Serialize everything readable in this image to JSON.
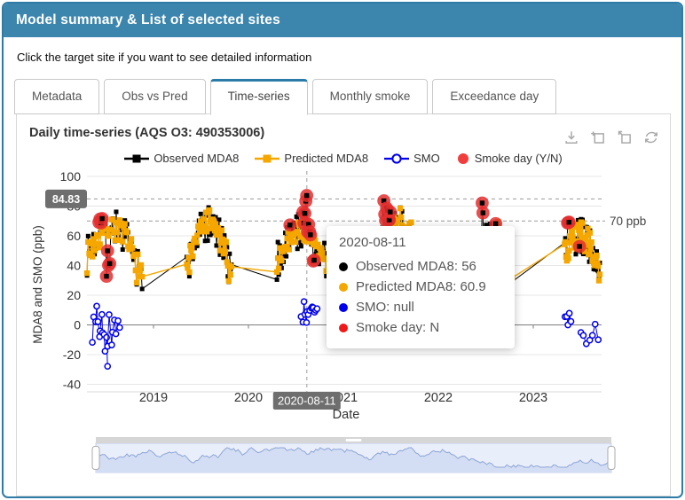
{
  "window": {
    "title": "Model summary & List of selected sites"
  },
  "instruction": "Click the target site if you want to see detailed information",
  "tabs": {
    "active_index": 2,
    "items": [
      {
        "label": "Metadata"
      },
      {
        "label": "Obs vs Pred"
      },
      {
        "label": "Time-series"
      },
      {
        "label": "Monthly smoke"
      },
      {
        "label": "Exceedance day"
      }
    ]
  },
  "panel": {
    "title": "Daily time-series (AQS O3: 490353006)",
    "toolbar": [
      "download-icon",
      "box-zoom-icon",
      "zoom-back-icon",
      "refresh-icon"
    ]
  },
  "tooltip": {
    "title": "2020-08-11",
    "rows": [
      {
        "label": "Observed MDA8: 56",
        "color": "#000000"
      },
      {
        "label": "Predicted MDA8: 60.9",
        "color": "#f5a700"
      },
      {
        "label": "SMO: null",
        "color": "#0000ee"
      },
      {
        "label": "Smoke day: N",
        "color": "#f01818"
      }
    ]
  },
  "chart_data": {
    "type": "line+scatter",
    "title": "Daily time-series (AQS O3: 490353006)",
    "xlabel": "Date",
    "ylabel": "MDA8 and SMO (ppb)",
    "ylim": [
      -40,
      100
    ],
    "yticks": [
      100,
      80,
      60,
      40,
      20,
      0,
      -20,
      -40
    ],
    "xticks": [
      2019,
      2020,
      2021,
      2022,
      2023
    ],
    "xlim": [
      2018.3,
      2023.73
    ],
    "grid": true,
    "legend_position": "top",
    "series": [
      {
        "name": "Observed MDA8",
        "color": "#000000",
        "marker": "square"
      },
      {
        "name": "Predicted MDA8",
        "color": "#f5a700",
        "marker": "square"
      },
      {
        "name": "SMO",
        "color": "#0000ee",
        "marker": "open-circle"
      },
      {
        "name": "Smoke day (Y/N)",
        "color": "#e42f2f",
        "marker": "circle"
      }
    ],
    "threshold": {
      "value": 70,
      "label": "70 ppb"
    },
    "crosshair": {
      "x_value": 2020.615,
      "x_label": "2020-08-11",
      "y_value": 84.83,
      "y_label": "84.83"
    },
    "hover_point": {
      "date": "2020-08-11",
      "observed": 56,
      "predicted": 60.9,
      "smo": null,
      "smoke_day": "N"
    },
    "seasons": [
      {
        "x0": 2018.3,
        "x1": 2018.88,
        "n": 52,
        "start": 46,
        "peak": 66,
        "end": 30,
        "noise": 13,
        "smo": {
          "groups": [
            {
              "x0": 2018.36,
              "x1": 2018.52,
              "n": 13,
              "vmin": -28,
              "vmax": 13
            },
            {
              "x0": 2018.52,
              "x1": 2018.64,
              "n": 8,
              "vmin": -15,
              "vmax": 10
            }
          ]
        },
        "smoke": [
          {
            "x0": 2018.42,
            "x1": 2018.52,
            "vmin": 60,
            "vmax": 74,
            "count": 4
          },
          {
            "x0": 2018.5,
            "x1": 2018.62,
            "vmin": 30,
            "vmax": 50,
            "count": 4
          }
        ]
      },
      {
        "x0": 2019.35,
        "x1": 2019.82,
        "n": 52,
        "start": 38,
        "peak": 68,
        "end": 33,
        "noise": 13,
        "smo": {
          "groups": []
        },
        "smoke": []
      },
      {
        "x0": 2020.3,
        "x1": 2020.82,
        "n": 54,
        "start": 42,
        "peak": 64,
        "end": 40,
        "noise": 13,
        "smo": {
          "groups": [
            {
              "x0": 2020.56,
              "x1": 2020.72,
              "n": 14,
              "vmin": -5,
              "vmax": 17
            }
          ]
        },
        "smoke": [
          {
            "x0": 2020.6,
            "x1": 2020.66,
            "vmin": 82,
            "vmax": 88,
            "count": 2
          },
          {
            "x0": 2020.57,
            "x1": 2020.76,
            "vmin": 60,
            "vmax": 76,
            "count": 7
          },
          {
            "x0": 2020.68,
            "x1": 2020.75,
            "vmin": 36,
            "vmax": 46,
            "count": 2
          },
          {
            "x0": 2020.43,
            "x1": 2020.47,
            "vmin": 66,
            "vmax": 72,
            "count": 1
          }
        ]
      },
      {
        "x0": 2021.35,
        "x1": 2021.8,
        "n": 48,
        "start": 50,
        "peak": 70,
        "end": 45,
        "noise": 11,
        "smo": {
          "groups": [
            {
              "x0": 2021.42,
              "x1": 2021.47,
              "n": 5,
              "vmin": -25,
              "vmax": 0
            },
            {
              "x0": 2021.58,
              "x1": 2021.66,
              "n": 4,
              "vmin": -13,
              "vmax": -2
            }
          ]
        },
        "smoke": [
          {
            "x0": 2021.42,
            "x1": 2021.62,
            "vmin": 70,
            "vmax": 85,
            "count": 8
          }
        ]
      },
      {
        "x0": 2022.42,
        "x1": 2022.78,
        "n": 44,
        "start": 42,
        "peak": 62,
        "end": 40,
        "noise": 12,
        "smo": {
          "groups": [
            {
              "x0": 2022.46,
              "x1": 2022.47,
              "n": 1,
              "vmin": 2,
              "vmax": 4
            },
            {
              "x0": 2022.55,
              "x1": 2022.66,
              "n": 8,
              "vmin": 0,
              "vmax": 15
            }
          ]
        },
        "smoke": [
          {
            "x0": 2022.46,
            "x1": 2022.56,
            "vmin": 74,
            "vmax": 84,
            "count": 2
          },
          {
            "x0": 2022.6,
            "x1": 2022.66,
            "vmin": 66,
            "vmax": 72,
            "count": 1
          }
        ]
      },
      {
        "x0": 2023.33,
        "x1": 2023.7,
        "n": 48,
        "start": 46,
        "peak": 60,
        "end": 34,
        "noise": 12,
        "smo": {
          "groups": [
            {
              "x0": 2023.34,
              "x1": 2023.4,
              "n": 5,
              "vmin": -1,
              "vmax": 11
            },
            {
              "x0": 2023.5,
              "x1": 2023.68,
              "n": 7,
              "vmin": -16,
              "vmax": 3
            }
          ]
        },
        "smoke": [
          {
            "x0": 2023.36,
            "x1": 2023.46,
            "vmin": 68,
            "vmax": 73,
            "count": 3
          },
          {
            "x0": 2023.48,
            "x1": 2023.54,
            "vmin": 48,
            "vmax": 54,
            "count": 1
          }
        ]
      }
    ],
    "navigator": {
      "present": true,
      "range": "full"
    }
  }
}
